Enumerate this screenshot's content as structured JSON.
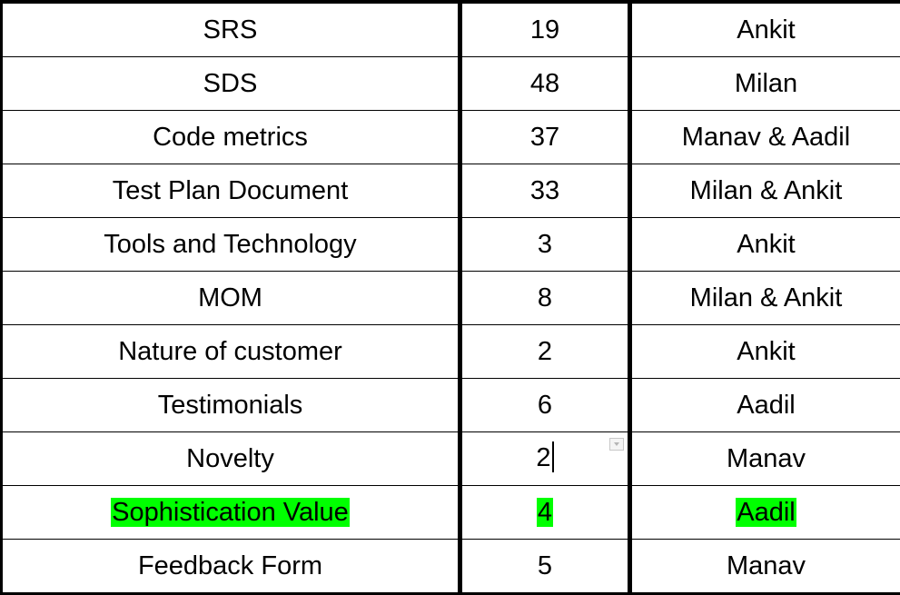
{
  "table": {
    "rows": [
      {
        "task": "SRS",
        "count": "19",
        "owner": "Ankit",
        "highlighted": false
      },
      {
        "task": "SDS",
        "count": "48",
        "owner": "Milan",
        "highlighted": false
      },
      {
        "task": "Code metrics",
        "count": "37",
        "owner": "Manav & Aadil",
        "highlighted": false
      },
      {
        "task": "Test Plan Document",
        "count": "33",
        "owner": "Milan & Ankit",
        "highlighted": false
      },
      {
        "task": "Tools and Technology",
        "count": "3",
        "owner": "Ankit",
        "highlighted": false
      },
      {
        "task": "MOM",
        "count": "8",
        "owner": "Milan & Ankit",
        "highlighted": false
      },
      {
        "task": "Nature of customer",
        "count": "2",
        "owner": "Ankit",
        "highlighted": false
      },
      {
        "task": "Testimonials",
        "count": "6",
        "owner": "Aadil",
        "highlighted": false
      },
      {
        "task": "Novelty",
        "count": "2",
        "owner": "Manav",
        "highlighted": false
      },
      {
        "task": "Sophistication Value",
        "count": "4",
        "owner": "Aadil",
        "highlighted": true
      },
      {
        "task": "Feedback Form",
        "count": "5",
        "owner": "Manav",
        "highlighted": false
      }
    ]
  },
  "colors": {
    "highlight": "#00ff00",
    "border": "#000000",
    "text": "#000000"
  },
  "active_cell": {
    "row": 8,
    "column": "count"
  },
  "icons": {
    "dropdown": "dropdown-arrow-icon"
  }
}
